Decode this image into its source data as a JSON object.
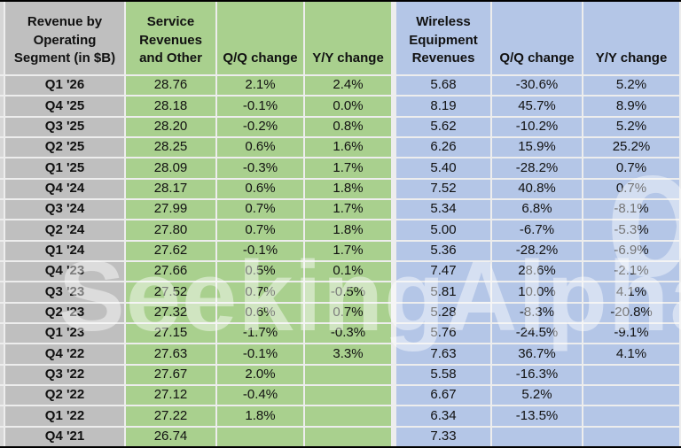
{
  "table": {
    "header": {
      "segment_label": "Revenue by Operating Segment (in $B)",
      "columns": [
        "Service Revenues and Other",
        "Q/Q change",
        "Y/Y change",
        "Wireless Equipment Revenues",
        "Q/Q change",
        "Y/Y change"
      ]
    },
    "rows": [
      {
        "quarter": "Q1 '26",
        "values": [
          "28.76",
          "2.1%",
          "2.4%",
          "5.68",
          "-30.6%",
          "5.2%"
        ]
      },
      {
        "quarter": "Q4 '25",
        "values": [
          "28.18",
          "-0.1%",
          "0.0%",
          "8.19",
          "45.7%",
          "8.9%"
        ]
      },
      {
        "quarter": "Q3 '25",
        "values": [
          "28.20",
          "-0.2%",
          "0.8%",
          "5.62",
          "-10.2%",
          "5.2%"
        ]
      },
      {
        "quarter": "Q2 '25",
        "values": [
          "28.25",
          "0.6%",
          "1.6%",
          "6.26",
          "15.9%",
          "25.2%"
        ]
      },
      {
        "quarter": "Q1 '25",
        "values": [
          "28.09",
          "-0.3%",
          "1.7%",
          "5.40",
          "-28.2%",
          "0.7%"
        ]
      },
      {
        "quarter": "Q4 '24",
        "values": [
          "28.17",
          "0.6%",
          "1.8%",
          "7.52",
          "40.8%",
          "0.7%"
        ]
      },
      {
        "quarter": "Q3 '24",
        "values": [
          "27.99",
          "0.7%",
          "1.7%",
          "5.34",
          "6.8%",
          "-8.1%"
        ]
      },
      {
        "quarter": "Q2 '24",
        "values": [
          "27.80",
          "0.7%",
          "1.8%",
          "5.00",
          "-6.7%",
          "-5.3%"
        ]
      },
      {
        "quarter": "Q1 '24",
        "values": [
          "27.62",
          "-0.1%",
          "1.7%",
          "5.36",
          "-28.2%",
          "-6.9%"
        ]
      },
      {
        "quarter": "Q4 '23",
        "values": [
          "27.66",
          "0.5%",
          "0.1%",
          "7.47",
          "28.6%",
          "-2.1%"
        ]
      },
      {
        "quarter": "Q3 '23",
        "values": [
          "27.52",
          "0.7%",
          "-0.5%",
          "5.81",
          "10.0%",
          "4.1%"
        ]
      },
      {
        "quarter": "Q2 '23",
        "values": [
          "27.32",
          "0.6%",
          "0.7%",
          "5.28",
          "-8.3%",
          "-20.8%"
        ]
      },
      {
        "quarter": "Q1 '23",
        "values": [
          "27.15",
          "-1.7%",
          "-0.3%",
          "5.76",
          "-24.5%",
          "-9.1%"
        ]
      },
      {
        "quarter": "Q4 '22",
        "values": [
          "27.63",
          "-0.1%",
          "3.3%",
          "7.63",
          "36.7%",
          "4.1%"
        ]
      },
      {
        "quarter": "Q3 '22",
        "values": [
          "27.67",
          "2.0%",
          "",
          "5.58",
          "-16.3%",
          ""
        ]
      },
      {
        "quarter": "Q2 '22",
        "values": [
          "27.12",
          "-0.4%",
          "",
          "6.67",
          "5.2%",
          ""
        ]
      },
      {
        "quarter": "Q1 '22",
        "values": [
          "27.22",
          "1.8%",
          "",
          "6.34",
          "-13.5%",
          ""
        ]
      },
      {
        "quarter": "Q4 '21",
        "values": [
          "26.74",
          "",
          "",
          "7.33",
          "",
          ""
        ]
      }
    ]
  },
  "watermark": {
    "text": "SeekingAlpha",
    "symbol": "α"
  },
  "colors": {
    "segment_label_bg": "#bfbfbf",
    "service_group_bg": "#a9d08e",
    "wireless_group_bg": "#b4c6e7",
    "gridline": "#ededed",
    "outer_border": "#000000",
    "text": "#111111"
  }
}
